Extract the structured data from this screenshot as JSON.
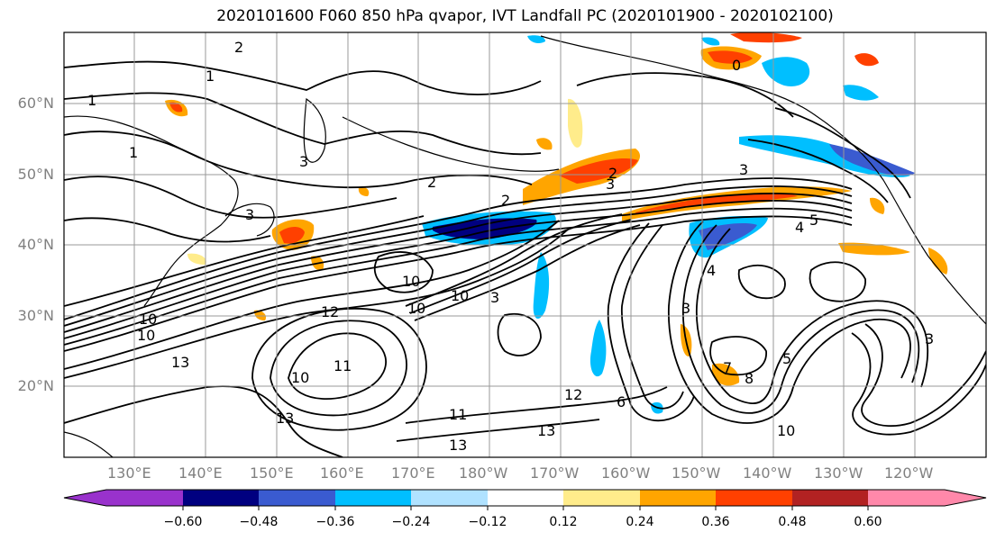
{
  "title": "2020101600 F060 850 hPa qvapor, IVT Landfall PC (2020101900 - 2020102100)",
  "lat_labels": [
    "60°N",
    "50°N",
    "40°N",
    "30°N",
    "20°N"
  ],
  "lon_labels": [
    "130°E",
    "140°E",
    "150°E",
    "160°E",
    "170°E",
    "180°W",
    "170°W",
    "160°W",
    "150°W",
    "140°W",
    "130°W",
    "120°W"
  ],
  "colorbar": {
    "tick_labels": [
      "−0.60",
      "−0.48",
      "−0.36",
      "−0.24",
      "−0.12",
      "0.12",
      "0.24",
      "0.36",
      "0.48",
      "0.60"
    ],
    "colors": [
      "#9932cc",
      "#000080",
      "#3a5bd0",
      "#00bfff",
      "#b0e2ff",
      "#ffffff",
      "#ffec8b",
      "#ffa500",
      "#ff4000",
      "#b22222",
      "#ff88aa"
    ]
  },
  "contour_labels": [
    "2",
    "1",
    "1",
    "3",
    "1",
    "2",
    "3",
    "3",
    "2",
    "2",
    "0",
    "3",
    "4",
    "5",
    "3",
    "3",
    "4",
    "10",
    "10",
    "12",
    "10",
    "10",
    "13",
    "10",
    "11",
    "10",
    "11",
    "13",
    "12",
    "6",
    "7",
    "8",
    "5",
    "10",
    "13",
    "13",
    "3"
  ]
}
